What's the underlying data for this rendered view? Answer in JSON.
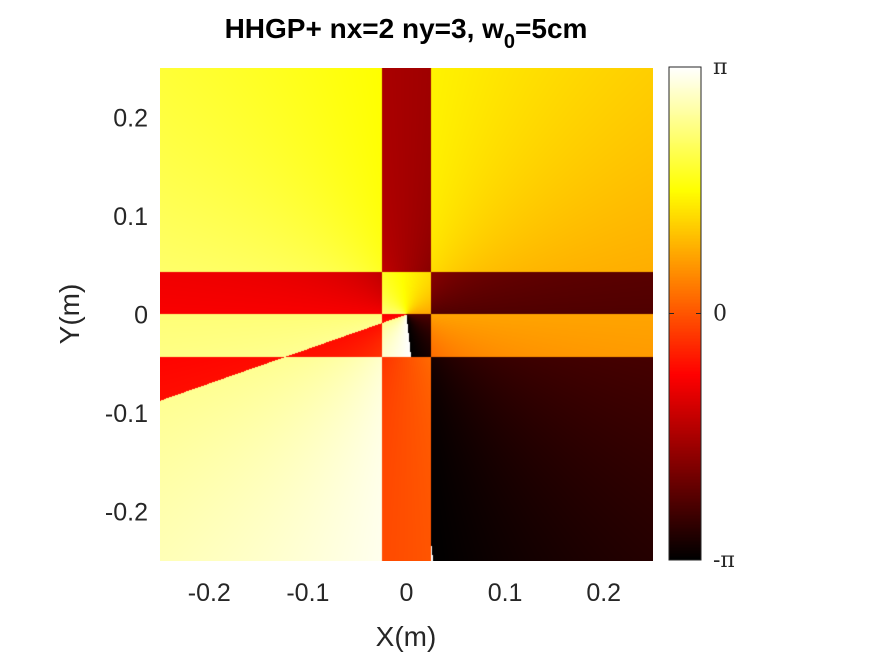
{
  "chart_data": {
    "type": "heatmap",
    "title": {
      "prefix": "HHGP+ nx=2 ny=3, w",
      "subscript": "0",
      "suffix": "=5cm"
    },
    "xlabel": "X(m)",
    "ylabel": "Y(m)",
    "xlim": [
      -0.25,
      0.25
    ],
    "ylim": [
      -0.25,
      0.25
    ],
    "x_ticks": [
      {
        "value": -0.2,
        "label": "-0.2"
      },
      {
        "value": -0.1,
        "label": "-0.1"
      },
      {
        "value": 0,
        "label": "0"
      },
      {
        "value": 0.1,
        "label": "0.1"
      },
      {
        "value": 0.2,
        "label": "0.2"
      }
    ],
    "y_ticks": [
      {
        "value": 0.2,
        "label": "0.2"
      },
      {
        "value": 0.1,
        "label": "0.1"
      },
      {
        "value": 0,
        "label": "0"
      },
      {
        "value": -0.1,
        "label": "-0.1"
      },
      {
        "value": -0.2,
        "label": "-0.2"
      }
    ],
    "colormap": "hot",
    "colorbar": {
      "range": [
        -3.14159,
        3.14159
      ],
      "ticks": [
        {
          "value": 3.14159,
          "label": "π"
        },
        {
          "value": 0,
          "label": "0"
        },
        {
          "value": -3.14159,
          "label": "-π"
        }
      ]
    },
    "quantity": "phase",
    "beam": {
      "nx": 2,
      "ny": 3,
      "w0": 0.05
    }
  }
}
